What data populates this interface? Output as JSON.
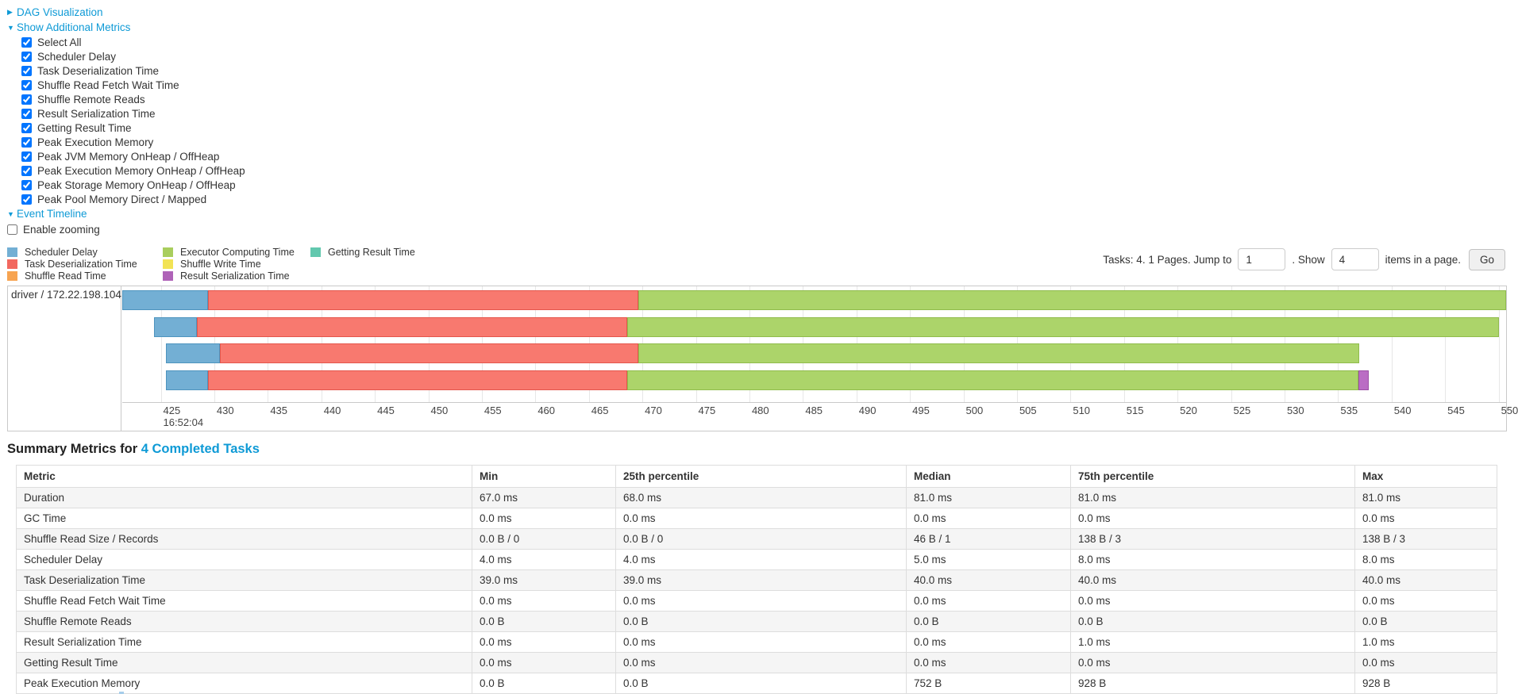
{
  "toggles": {
    "dag": {
      "label": "DAG Visualization",
      "state": "collapsed"
    },
    "metrics": {
      "label": "Show Additional Metrics",
      "state": "expanded"
    },
    "timeline": {
      "label": "Event Timeline",
      "state": "expanded"
    }
  },
  "metrics_checkboxes": [
    "Select All",
    "Scheduler Delay",
    "Task Deserialization Time",
    "Shuffle Read Fetch Wait Time",
    "Shuffle Remote Reads",
    "Result Serialization Time",
    "Getting Result Time",
    "Peak Execution Memory",
    "Peak JVM Memory OnHeap / OffHeap",
    "Peak Execution Memory OnHeap / OffHeap",
    "Peak Storage Memory OnHeap / OffHeap",
    "Peak Pool Memory Direct / Mapped"
  ],
  "enable_zooming_label": "Enable zooming",
  "legend": {
    "columns": [
      [
        {
          "label": "Scheduler Delay",
          "color": "#73AFD4"
        },
        {
          "label": "Task Deserialization Time",
          "color": "#F2685F"
        },
        {
          "label": "Shuffle Read Time",
          "color": "#F7A451"
        }
      ],
      [
        {
          "label": "Executor Computing Time",
          "color": "#A9CE5D"
        },
        {
          "label": "Shuffle Write Time",
          "color": "#F2E355"
        },
        {
          "label": "Result Serialization Time",
          "color": "#AF63B8"
        }
      ],
      [
        {
          "label": "Getting Result Time",
          "color": "#62C8AE"
        }
      ]
    ]
  },
  "pagination": {
    "summary": "Tasks: 4. 1 Pages. Jump to",
    "jump_value": "1",
    "show_label": ". Show",
    "show_value": "4",
    "items_label": "items in a page.",
    "go_label": "Go"
  },
  "chart_data": {
    "type": "timeline",
    "group_label": "driver / 172.22.198.104",
    "axis": {
      "base_time_label": "16:52:04",
      "tick_start": 425,
      "tick_end": 550,
      "tick_step": 5,
      "view_min": 421.4,
      "view_max": 550.7,
      "unit": "ms after 16:52:04"
    },
    "series_colors": {
      "scheduler_delay": {
        "fill": "#73AFD4",
        "border": "#4E94BE"
      },
      "task_deserialization": {
        "fill": "#F8796F",
        "border": "#E4564C"
      },
      "executor_computing": {
        "fill": "#ACD46A",
        "border": "#90BC4C"
      },
      "result_serialization": {
        "fill": "#BA6CC4",
        "border": "#9C4FA5"
      }
    },
    "tasks": [
      {
        "segments": [
          {
            "name": "scheduler_delay",
            "start": 421.4,
            "end": 429.4
          },
          {
            "name": "task_deserialization",
            "start": 429.4,
            "end": 469.6
          },
          {
            "name": "executor_computing",
            "start": 469.6,
            "end": 550.7
          }
        ]
      },
      {
        "segments": [
          {
            "name": "scheduler_delay",
            "start": 424.4,
            "end": 428.4
          },
          {
            "name": "task_deserialization",
            "start": 428.4,
            "end": 468.6
          },
          {
            "name": "executor_computing",
            "start": 468.6,
            "end": 550.0
          }
        ]
      },
      {
        "segments": [
          {
            "name": "scheduler_delay",
            "start": 425.5,
            "end": 430.5
          },
          {
            "name": "task_deserialization",
            "start": 430.5,
            "end": 469.6
          },
          {
            "name": "executor_computing",
            "start": 469.6,
            "end": 537.0
          }
        ]
      },
      {
        "segments": [
          {
            "name": "scheduler_delay",
            "start": 425.5,
            "end": 429.4
          },
          {
            "name": "task_deserialization",
            "start": 429.4,
            "end": 468.6
          },
          {
            "name": "executor_computing",
            "start": 468.6,
            "end": 536.9
          },
          {
            "name": "result_serialization",
            "start": 536.9,
            "end": 537.9
          }
        ]
      }
    ]
  },
  "summary": {
    "title_prefix": "Summary Metrics for ",
    "title_link": "4 Completed Tasks",
    "columns": [
      "Metric",
      "Min",
      "25th percentile",
      "Median",
      "75th percentile",
      "Max"
    ],
    "rows": [
      [
        "Duration",
        "67.0 ms",
        "68.0 ms",
        "81.0 ms",
        "81.0 ms",
        "81.0 ms"
      ],
      [
        "GC Time",
        "0.0 ms",
        "0.0 ms",
        "0.0 ms",
        "0.0 ms",
        "0.0 ms"
      ],
      [
        "Shuffle Read Size / Records",
        "0.0 B / 0",
        "0.0 B / 0",
        "46 B / 1",
        "138 B / 3",
        "138 B / 3"
      ],
      [
        "Scheduler Delay",
        "4.0 ms",
        "4.0 ms",
        "5.0 ms",
        "8.0 ms",
        "8.0 ms"
      ],
      [
        "Task Deserialization Time",
        "39.0 ms",
        "39.0 ms",
        "40.0 ms",
        "40.0 ms",
        "40.0 ms"
      ],
      [
        "Shuffle Read Fetch Wait Time",
        "0.0 ms",
        "0.0 ms",
        "0.0 ms",
        "0.0 ms",
        "0.0 ms"
      ],
      [
        "Shuffle Remote Reads",
        "0.0 B",
        "0.0 B",
        "0.0 B",
        "0.0 B",
        "0.0 B"
      ],
      [
        "Result Serialization Time",
        "0.0 ms",
        "0.0 ms",
        "0.0 ms",
        "1.0 ms",
        "1.0 ms"
      ],
      [
        "Getting Result Time",
        "0.0 ms",
        "0.0 ms",
        "0.0 ms",
        "0.0 ms",
        "0.0 ms"
      ],
      [
        "Peak Execution Memory",
        "0.0 B",
        "0.0 B",
        "752 B",
        "928 B",
        "928 B"
      ]
    ]
  }
}
